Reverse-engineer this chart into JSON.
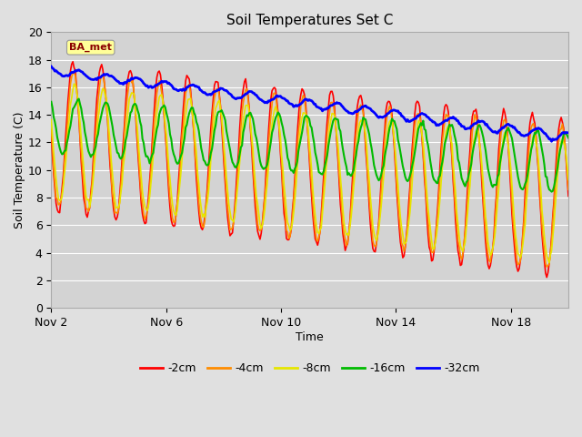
{
  "title": "Soil Temperatures Set C",
  "xlabel": "Time",
  "ylabel": "Soil Temperature (C)",
  "ylim": [
    0,
    20
  ],
  "yticks": [
    0,
    2,
    4,
    6,
    8,
    10,
    12,
    14,
    16,
    18,
    20
  ],
  "xtick_labels": [
    "Nov 2",
    "Nov 6",
    "Nov 10",
    "Nov 14",
    "Nov 18"
  ],
  "xtick_positions": [
    2,
    6,
    10,
    14,
    18
  ],
  "xlim": [
    2,
    20
  ],
  "annotation_text": "BA_met",
  "fig_bg_color": "#e0e0e0",
  "plot_bg_color": "#d3d3d3",
  "grid_color": "#ffffff",
  "line_colors": {
    "-2cm": "#ff0000",
    "-4cm": "#ff8c00",
    "-8cm": "#e6e600",
    "-16cm": "#00bb00",
    "-32cm": "#0000ff"
  },
  "line_widths": {
    "-2cm": 1.2,
    "-4cm": 1.2,
    "-8cm": 1.2,
    "-16cm": 1.5,
    "-32cm": 2.0
  },
  "figsize": [
    6.4,
    4.8
  ],
  "dpi": 100
}
